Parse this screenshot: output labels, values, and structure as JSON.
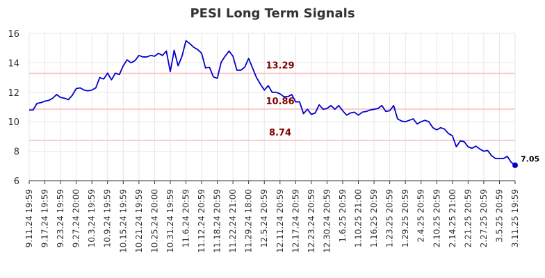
{
  "chart_data": {
    "type": "line",
    "title": "PESI Long Term Signals",
    "xlabel": "",
    "ylabel": "",
    "ylim": [
      6,
      16
    ],
    "yticks": [
      6,
      8,
      10,
      12,
      14,
      16
    ],
    "grid": true,
    "xtick_labels": [
      "9.11.24 19:59",
      "9.17.24 19:59",
      "9.23.24 19:59",
      "9.27.24 20:00",
      "10.3.24 19:59",
      "10.9.24 19:59",
      "10.15.24 19:59",
      "10.21.24 19:59",
      "10.25.24 20:00",
      "10.31.24 19:59",
      "11.6.24 20:59",
      "11.12.24 20:59",
      "11.18.24 20:59",
      "11.22.24 21:00",
      "11.29.24 18:00",
      "12.5.24 20:59",
      "12.11.24 20:59",
      "12.17.24 20:59",
      "12.23.24 20:59",
      "12.30.24 20:59",
      "1.6.25 20:59",
      "1.10.25 21:00",
      "1.16.25 20:59",
      "1.23.25 20:59",
      "1.29.25 20:59",
      "2.4.25 20:59",
      "2.10.25 20:59",
      "2.14.25 21:00",
      "2.21.25 20:59",
      "2.27.25 20:59",
      "3.5.25 20:59",
      "3.11.25 19:59"
    ],
    "series": [
      {
        "color": "#0000cc",
        "values": [
          10.8,
          10.8,
          11.25,
          11.3,
          11.4,
          11.45,
          11.6,
          11.85,
          11.65,
          11.6,
          11.5,
          11.8,
          12.25,
          12.3,
          12.15,
          12.1,
          12.15,
          12.3,
          13.0,
          12.9,
          13.3,
          12.85,
          13.3,
          13.2,
          13.8,
          14.2,
          14.0,
          14.15,
          14.5,
          14.4,
          14.4,
          14.5,
          14.45,
          14.65,
          14.5,
          14.8,
          13.4,
          14.85,
          13.8,
          14.45,
          15.5,
          15.3,
          15.05,
          14.9,
          14.65,
          13.65,
          13.7,
          13.05,
          12.95,
          14.05,
          14.45,
          14.8,
          14.45,
          13.5,
          13.5,
          13.7,
          14.3,
          13.65,
          13.0,
          12.55,
          12.15,
          12.45,
          12.0,
          12.0,
          11.9,
          11.7,
          11.7,
          11.85,
          11.35,
          11.35,
          10.55,
          10.85,
          10.5,
          10.6,
          11.15,
          10.85,
          10.9,
          11.1,
          10.85,
          11.1,
          10.75,
          10.45,
          10.6,
          10.65,
          10.45,
          10.65,
          10.7,
          10.8,
          10.85,
          10.9,
          11.1,
          10.7,
          10.75,
          11.1,
          10.2,
          10.05,
          10.0,
          10.1,
          10.2,
          9.85,
          10.0,
          10.1,
          10.0,
          9.6,
          9.45,
          9.6,
          9.5,
          9.2,
          9.05,
          8.3,
          8.7,
          8.65,
          8.3,
          8.2,
          8.35,
          8.15,
          8.0,
          8.05,
          7.7,
          7.5,
          7.5,
          7.5,
          7.65,
          7.25,
          7.05
        ]
      }
    ],
    "signal_lines": [
      {
        "value": 13.29,
        "label": "13.29",
        "line_color": "#ffbbbb",
        "text_color": "#800000"
      },
      {
        "value": 10.86,
        "label": "10.86",
        "line_color": "#ffbbbb",
        "text_color": "#800000"
      },
      {
        "value": 8.74,
        "label": "8.74",
        "line_color": "#ffbbbb",
        "text_color": "#800000"
      }
    ],
    "last_value_label": "7.05"
  }
}
